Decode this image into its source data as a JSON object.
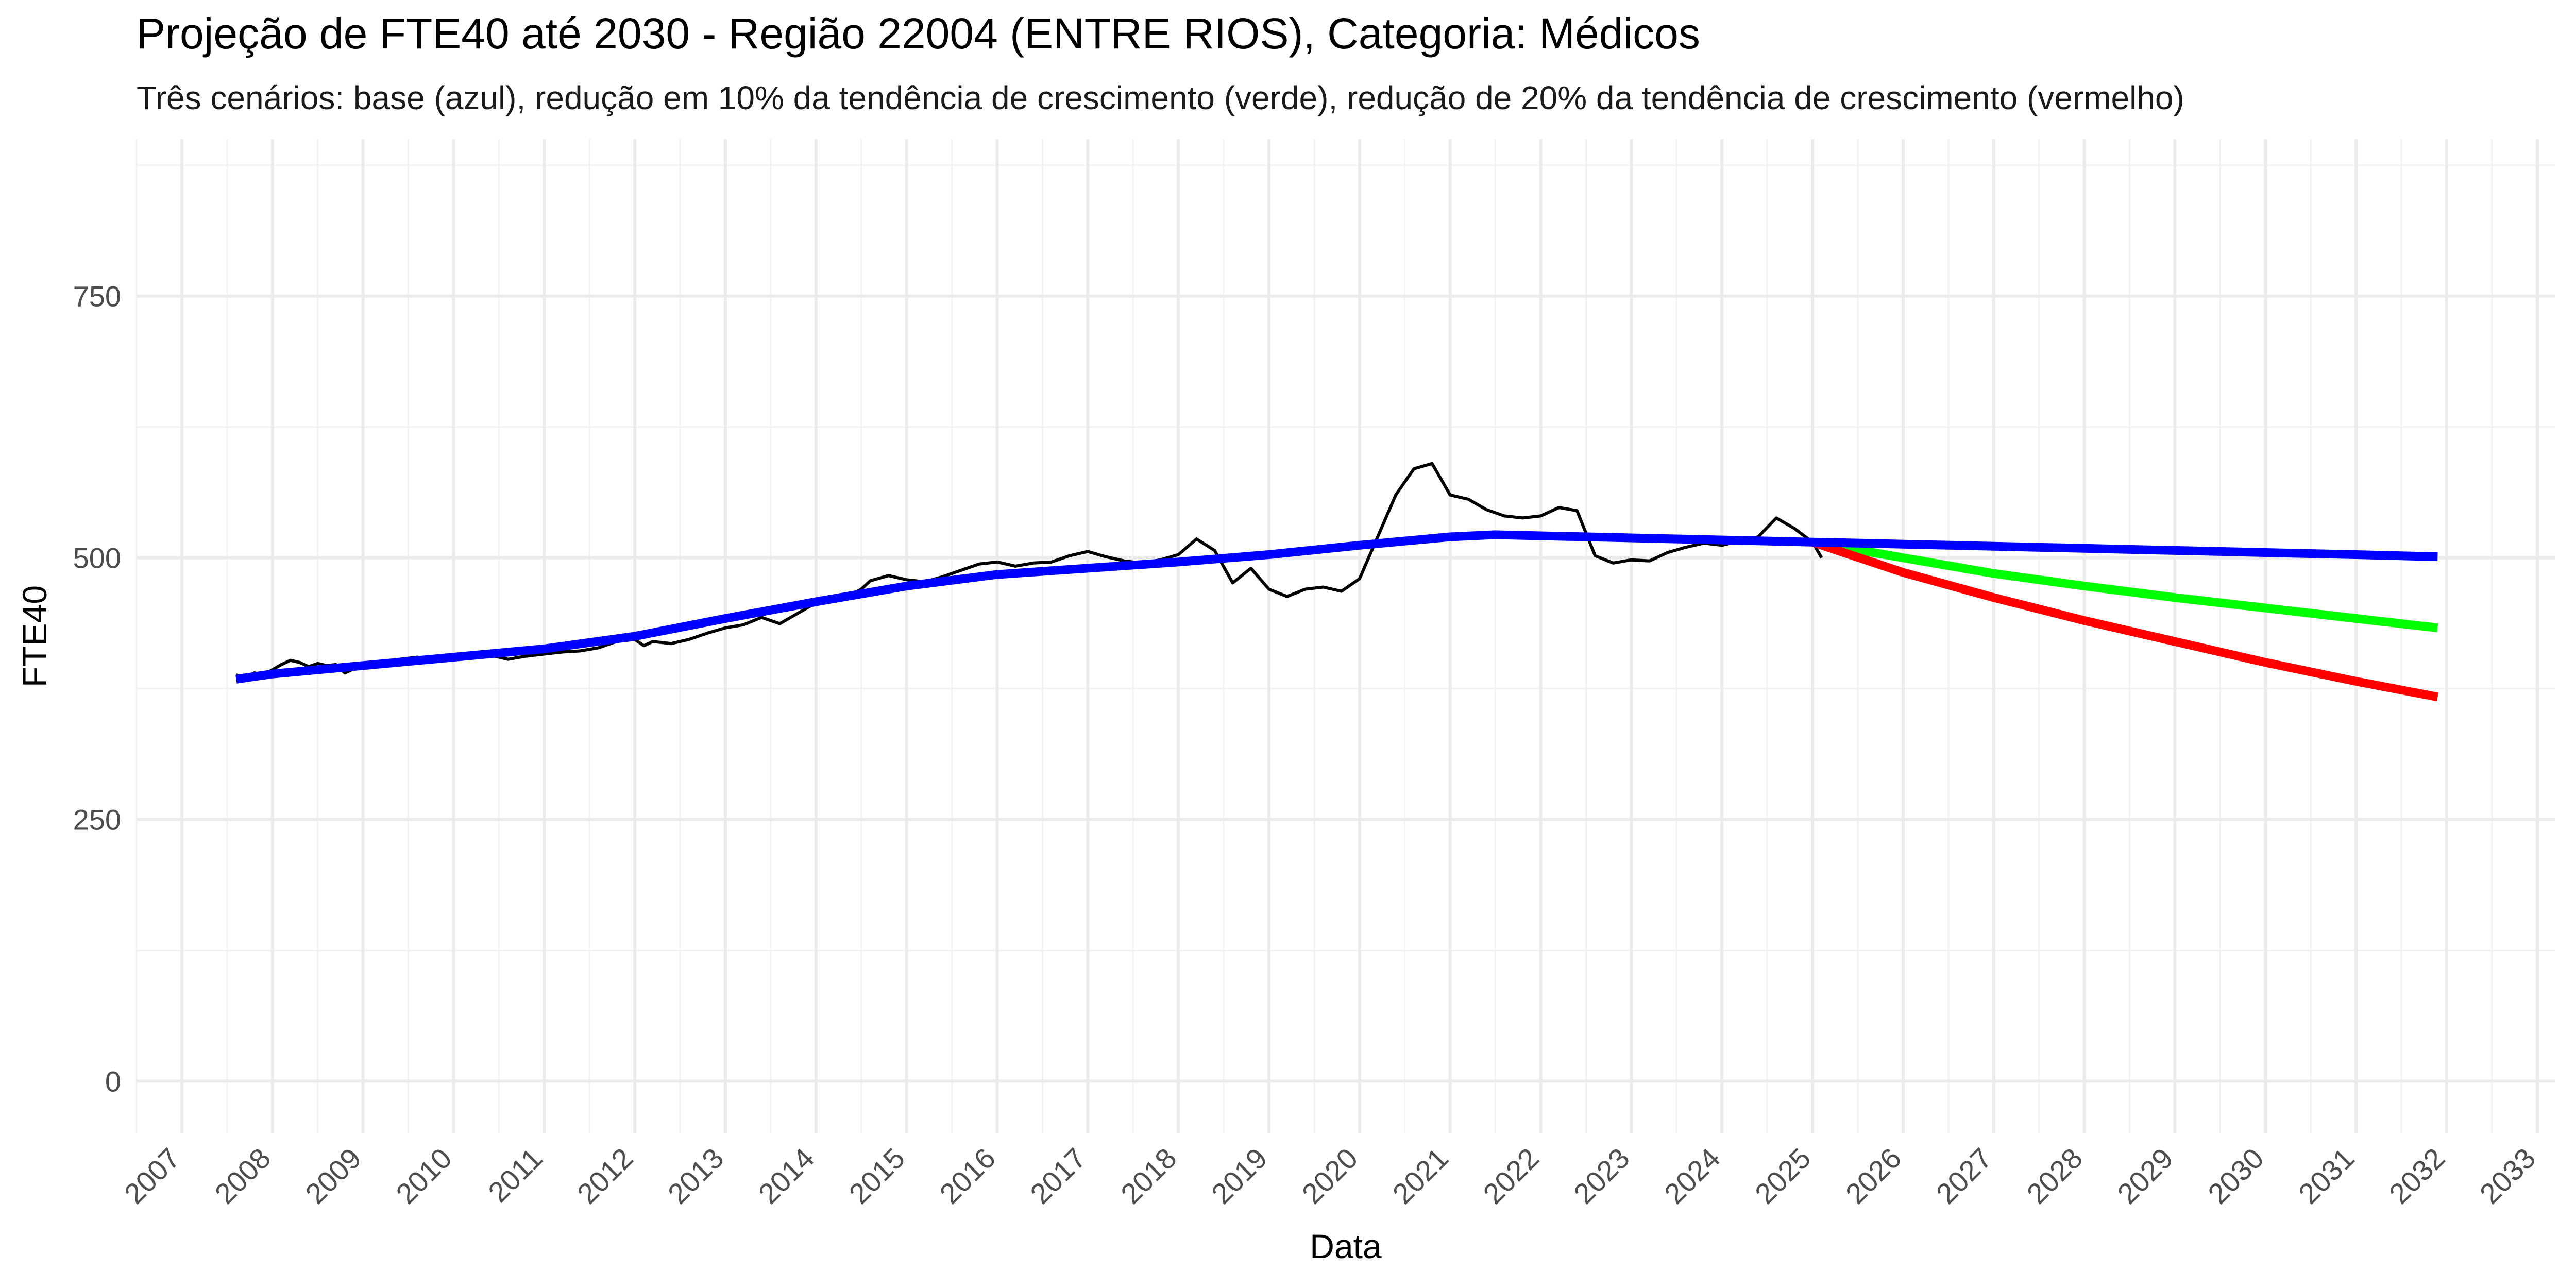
{
  "chart_data": {
    "type": "line",
    "title": "Projeção de FTE40 até 2030 - Região 22004 (ENTRE RIOS), Categoria: Médicos",
    "subtitle": "Três cenários: base (azul), redução em 10% da tendência de crescimento (verde), redução de 20% da tendência de crescimento (vermelho)",
    "xlabel": "Data",
    "ylabel": "FTE40",
    "xlim": [
      2006.5,
      2033.2
    ],
    "ylim": [
      -50,
      900
    ],
    "x_ticks": [
      "2007",
      "2008",
      "2009",
      "2010",
      "2011",
      "2012",
      "2013",
      "2014",
      "2015",
      "2016",
      "2017",
      "2018",
      "2019",
      "2020",
      "2021",
      "2022",
      "2023",
      "2024",
      "2025",
      "2026",
      "2027",
      "2028",
      "2029",
      "2030",
      "2031",
      "2032",
      "2033"
    ],
    "y_ticks": [
      0,
      250,
      500,
      750
    ],
    "y_tick_labels": [
      "0",
      "250",
      "500",
      "750"
    ],
    "grid": true,
    "legend": "none",
    "colors": {
      "observed": "#000000",
      "base": "#0000ff",
      "green": "#00ff00",
      "red": "#ff0000"
    },
    "series": [
      {
        "x": [
          2007.6,
          2007.7,
          2007.8,
          2007.9,
          2008.0,
          2008.1,
          2008.2,
          2008.3,
          2008.4,
          2008.5,
          2008.6,
          2008.7,
          2008.8,
          2008.9,
          2009.0,
          2009.2,
          2009.4,
          2009.6,
          2009.8,
          2010.0,
          2010.2,
          2010.4,
          2010.6,
          2010.8,
          2011.0,
          2011.2,
          2011.4,
          2011.6,
          2011.8,
          2012.0,
          2012.1,
          2012.2,
          2012.4,
          2012.6,
          2012.8,
          2013.0,
          2013.2,
          2013.4,
          2013.5,
          2013.6,
          2013.8,
          2014.0,
          2014.2,
          2014.4,
          2014.5,
          2014.6,
          2014.8,
          2015.0,
          2015.2,
          2015.4,
          2015.6,
          2015.8,
          2016.0,
          2016.2,
          2016.4,
          2016.6,
          2016.8,
          2017.0,
          2017.2,
          2017.4,
          2017.6,
          2017.8,
          2018.0,
          2018.2,
          2018.4,
          2018.6,
          2018.8,
          2019.0,
          2019.2,
          2019.4,
          2019.6,
          2019.8,
          2020.0,
          2020.2,
          2020.4,
          2020.6,
          2020.8,
          2021.0,
          2021.2,
          2021.4,
          2021.6,
          2021.8,
          2022.0,
          2022.2,
          2022.4,
          2022.6,
          2022.8,
          2023.0,
          2023.2,
          2023.4,
          2023.6,
          2023.8,
          2024.0,
          2024.2,
          2024.4,
          2024.6,
          2024.8,
          2025.0,
          2025.1
        ],
        "values": [
          388,
          386,
          390,
          388,
          393,
          398,
          402,
          400,
          396,
          399,
          397,
          398,
          390,
          394,
          396,
          400,
          403,
          405,
          401,
          406,
          404,
          407,
          403,
          406,
          408,
          410,
          411,
          414,
          420,
          422,
          416,
          420,
          418,
          422,
          428,
          433,
          436,
          443,
          440,
          437,
          447,
          457,
          460,
          465,
          470,
          478,
          483,
          479,
          477,
          482,
          488,
          494,
          496,
          492,
          495,
          496,
          502,
          506,
          501,
          497,
          495,
          498,
          503,
          518,
          507,
          476,
          490,
          470,
          463,
          470,
          472,
          468,
          480,
          520,
          560,
          585,
          590,
          560,
          556,
          546,
          540,
          538,
          540,
          548,
          545,
          502,
          495,
          498,
          497,
          505,
          510,
          514,
          512,
          516,
          520,
          538,
          528,
          515,
          500
        ],
        "color": "#000000"
      },
      {
        "x": [
          2007.6,
          2008.0,
          2009.0,
          2010.0,
          2011.0,
          2012.0,
          2013.0,
          2014.0,
          2015.0,
          2016.0,
          2017.0,
          2018.0,
          2019.0,
          2020.0,
          2021.0,
          2021.5,
          2022.0,
          2023.0,
          2024.0,
          2025.0,
          2026.0,
          2027.0,
          2028.0,
          2029.0,
          2030.0,
          2031.0,
          2031.9
        ],
        "values": [
          384,
          389,
          397,
          405,
          413,
          425,
          442,
          458,
          473,
          484,
          490,
          496,
          503,
          512,
          520,
          522,
          521,
          519,
          517,
          515,
          513,
          511,
          509,
          507,
          505,
          503,
          501
        ],
        "color": "#0000ff"
      },
      {
        "x": [
          2025.0,
          2026.0,
          2027.0,
          2028.0,
          2029.0,
          2030.0,
          2031.0,
          2031.9
        ],
        "values": [
          515,
          500,
          485,
          473,
          462,
          452,
          442,
          433
        ],
        "color": "#00ff00"
      },
      {
        "x": [
          2025.0,
          2026.0,
          2027.0,
          2028.0,
          2029.0,
          2030.0,
          2031.0,
          2031.9
        ],
        "values": [
          515,
          486,
          462,
          440,
          420,
          400,
          382,
          367
        ],
        "color": "#ff0000"
      }
    ]
  }
}
